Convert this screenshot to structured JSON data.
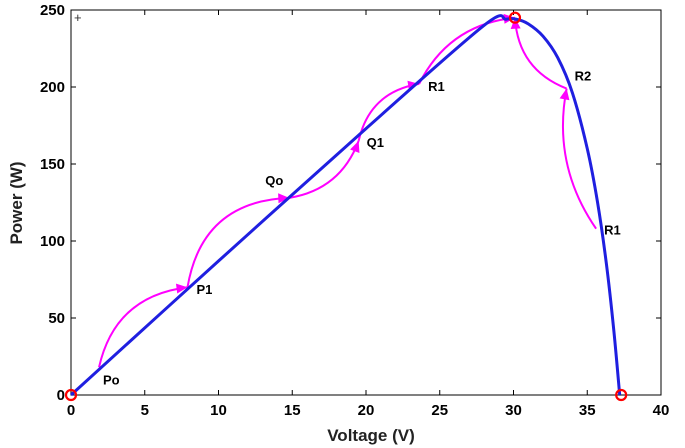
{
  "chart_data": {
    "type": "line",
    "title": "",
    "xlabel": "Voltage (V)",
    "ylabel": "Power (W)",
    "xlim": [
      0,
      40
    ],
    "ylim": [
      0,
      250
    ],
    "xticks": [
      0,
      5,
      10,
      15,
      20,
      25,
      30,
      35,
      40
    ],
    "yticks": [
      0,
      50,
      100,
      150,
      200,
      250
    ],
    "grid": false,
    "pv_curve": {
      "x": [
        0,
        10,
        20,
        28,
        29.5,
        30.2,
        31.0,
        32.0,
        33.0,
        34.0,
        35.0,
        35.7,
        36.3,
        36.8,
        37.2
      ],
      "y": [
        0,
        87,
        173,
        240,
        244,
        244,
        241,
        233,
        219,
        196,
        160,
        125,
        85,
        42,
        0
      ]
    },
    "tracking_points": [
      {
        "label": "Po",
        "x": 1.9,
        "y": 18
      },
      {
        "label": "P1",
        "x": 7.9,
        "y": 70
      },
      {
        "label": "Qo",
        "x": 14.8,
        "y": 128
      },
      {
        "label": "Q1",
        "x": 19.5,
        "y": 165
      },
      {
        "label": "R1",
        "x": 23.6,
        "y": 202
      },
      {
        "label": "R2",
        "x": 33.6,
        "y": 199
      },
      {
        "label": "R1",
        "x": 35.6,
        "y": 108
      }
    ],
    "mpp_markers": [
      {
        "x": 0,
        "y": 0
      },
      {
        "x": 30.1,
        "y": 245
      },
      {
        "x": 37.3,
        "y": 0
      }
    ],
    "corner_marker": "+",
    "colors": {
      "curve": "#1f1fe0",
      "arrows": "#ff00ff",
      "markers": "#ff0000",
      "axis": "#000000"
    }
  }
}
